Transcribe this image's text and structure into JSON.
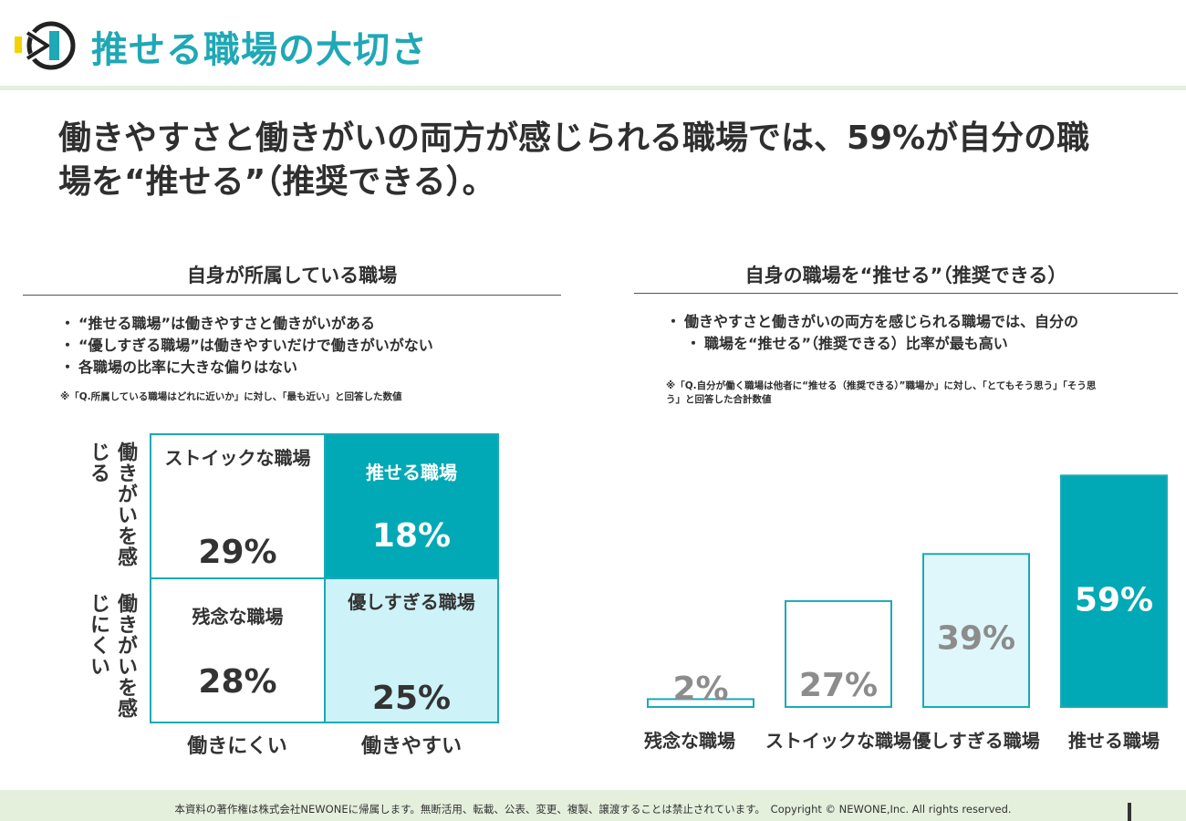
{
  "header": {
    "title": "推せる職場の大切さ"
  },
  "headline": {
    "line1": "働きやすさと働きがいの両方が感じられる職場では、59%が自分の職",
    "line2": "場を“推せる”（推奨できる）。"
  },
  "left_panel": {
    "title": "自身が所属している職場",
    "bullets": [
      "“推せる職場”は働きやすさと働きがいがある",
      "“優しすぎる職場”は働きやすいだけで働きがいがない",
      "各職場の比率に大きな偏りはない"
    ],
    "footnote": "※「Q.所属している職場はどれに近いか」に対し、「最も近い」と回答した数値"
  },
  "right_panel": {
    "title": "自身の職場を“推せる”（推奨できる）",
    "bullets": [
      "働きやすさと働きがいの両方を感じられる職場では、自分の",
      "職場を“推せる”（推奨できる）比率が最も高い"
    ],
    "footnote_line1": "※「Q.自分が働く職場は他者に“推せる（推奨できる）”職場か」に対し、「とてもそう思う」「そう思",
    "footnote_line2": "う」と回答した合計数値"
  },
  "chart_data": [
    {
      "type": "table",
      "row_labels": [
        "働きがいを感じる",
        "働きがいを感じにくい"
      ],
      "column_labels": [
        "働きにくい",
        "働きやすい"
      ],
      "cells": [
        [
          {
            "label": "ストイックな職場",
            "value": "29%"
          },
          {
            "label": "推せる職場",
            "value": "18%"
          }
        ],
        [
          {
            "label": "残念な職場",
            "value": "28%"
          },
          {
            "label": "優しすぎる職場",
            "value": "25%"
          }
        ]
      ]
    },
    {
      "type": "bar",
      "categories": [
        "残念な職場",
        "ストイックな職場",
        "優しすぎる職場",
        "推せる職場"
      ],
      "values": [
        2,
        27,
        39,
        59
      ],
      "value_labels": [
        "2%",
        "27%",
        "39%",
        "59%"
      ],
      "ylim": [
        0,
        60
      ],
      "grid": false,
      "colors": {
        "border": "#1aaab5",
        "fills": [
          "#ffffff",
          "#ffffff",
          "#dff7fa",
          "#00a9b5"
        ],
        "value_text": [
          "#8c8c8c",
          "#8c8c8c",
          "#8c8c8c",
          "#ffffff"
        ]
      }
    }
  ],
  "colors": {
    "accent": "#1fa8b5",
    "teal_fill": "#00a9b5",
    "light_fill": "#cdf2f8",
    "footer_bg": "#e4efdc"
  },
  "footer": {
    "copyright": "本資料の著作権は株式会社NEWONEに帰属します。無断活用、転載、公表、変更、複製、譲渡することは禁止されています。　Copyright © NEWONE,Inc.  All rights reserved."
  }
}
